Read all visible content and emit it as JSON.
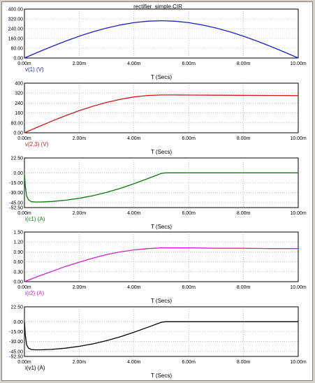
{
  "title": "rectifier_simple.CIR",
  "chart_data": [
    {
      "type": "line",
      "xlabel": "T (Secs)",
      "ylabel": "v(1) (V)",
      "color": "#1f1fcc",
      "xlim": [
        0,
        10
      ],
      "ylim": [
        0,
        400
      ],
      "xticks": [
        "0.00m",
        "2.00m",
        "4.00m",
        "6.00m",
        "8.00m",
        "10.00m"
      ],
      "yticks": [
        "400.00",
        "320.00",
        "240.00",
        "160.00",
        "80.00",
        "0.00"
      ],
      "yticks_values": [
        400,
        320,
        240,
        160,
        80,
        0
      ],
      "series": [
        {
          "name": "v(1) (V)",
          "x": [
            0,
            0.5,
            1,
            1.5,
            2,
            2.5,
            3,
            3.5,
            4,
            4.5,
            5,
            5.5,
            6,
            6.5,
            7,
            7.5,
            8,
            8.5,
            9,
            9.5,
            10
          ],
          "values": [
            0,
            48,
            94,
            138,
            178,
            214,
            245,
            270,
            289,
            301,
            305,
            301,
            289,
            270,
            245,
            214,
            178,
            138,
            94,
            48,
            0
          ]
        }
      ]
    },
    {
      "type": "line",
      "xlabel": "T (Secs)",
      "ylabel": "v(2,3) (V)",
      "color": "#d01818",
      "xlim": [
        0,
        10
      ],
      "ylim": [
        0,
        400
      ],
      "xticks": [
        "0.00m",
        "2.00m",
        "4.00m",
        "6.00m",
        "8.00m",
        "10.00m"
      ],
      "yticks": [
        "400",
        "320",
        "240",
        "160",
        "80.00",
        "0.00"
      ],
      "yticks_values": [
        400,
        320,
        240,
        160,
        80,
        0
      ],
      "series": [
        {
          "name": "v(2,3) (V)",
          "x": [
            0,
            0.5,
            1,
            1.5,
            2,
            2.5,
            3,
            3.5,
            4,
            4.5,
            5,
            5.5,
            6,
            7,
            8,
            9,
            10
          ],
          "values": [
            0,
            48,
            94,
            138,
            178,
            214,
            245,
            270,
            289,
            301,
            305,
            305,
            304,
            303,
            302,
            301,
            300
          ]
        }
      ]
    },
    {
      "type": "line",
      "xlabel": "T (Secs)",
      "ylabel": "i(c1) (A)",
      "color": "#0a7a0a",
      "xlim": [
        0,
        10
      ],
      "ylim": [
        -52.5,
        22.5
      ],
      "xticks": [
        "0.00m",
        "2.00m",
        "4.00m",
        "6.00m",
        "8.00m",
        "10.00m"
      ],
      "yticks": [
        "22.50",
        "0.00",
        "-15.00",
        "-30.00",
        "-45.00",
        "-52.50"
      ],
      "yticks_values": [
        22.5,
        0,
        -15,
        -30,
        -45,
        -52.5
      ],
      "series": [
        {
          "name": "i(c1) (A)",
          "x": [
            0,
            0.03,
            0.08,
            0.15,
            0.25,
            0.4,
            0.6,
            1,
            1.5,
            2,
            2.5,
            3,
            3.5,
            4,
            4.5,
            5,
            5.15,
            6,
            7,
            8,
            9,
            10
          ],
          "values": [
            0,
            -20,
            -35,
            -41,
            -43.5,
            -44,
            -44,
            -43.3,
            -41.4,
            -38.5,
            -34.5,
            -29.5,
            -23.5,
            -16.5,
            -8.8,
            -0.8,
            0,
            0,
            0,
            0,
            0,
            0
          ]
        }
      ]
    },
    {
      "type": "line",
      "xlabel": "T (Secs)",
      "ylabel": "i(r2) (A)",
      "color": "#cc22cc",
      "xlim": [
        0,
        10
      ],
      "ylim": [
        0,
        1.5
      ],
      "xticks": [
        "0.00m",
        "2.00m",
        "4.00m",
        "6.00m",
        "8.00m",
        "10.00m"
      ],
      "yticks": [
        "1.50",
        "1.20",
        "0.90",
        "0.60",
        "0.30",
        "0.00"
      ],
      "yticks_values": [
        1.5,
        1.2,
        0.9,
        0.6,
        0.3,
        0
      ],
      "series": [
        {
          "name": "i(r2) (A)",
          "x": [
            0,
            0.5,
            1,
            1.5,
            2,
            2.5,
            3,
            3.5,
            4,
            4.5,
            5,
            5.5,
            6,
            7,
            8,
            9,
            10
          ],
          "values": [
            0,
            0.16,
            0.31,
            0.46,
            0.59,
            0.71,
            0.82,
            0.9,
            0.96,
            1.0,
            1.02,
            1.02,
            1.02,
            1.01,
            1.01,
            1.0,
            1.0
          ]
        }
      ]
    },
    {
      "type": "line",
      "xlabel": "T (Secs)",
      "ylabel": "i(v1) (A)",
      "color": "#000000",
      "xlim": [
        0,
        10
      ],
      "ylim": [
        -52.5,
        22.5
      ],
      "xticks": [
        "0.00m",
        "2.00m",
        "4.00m",
        "6.00m",
        "8.00m",
        "10.00m"
      ],
      "yticks": [
        "22.50",
        "0.00",
        "-15.00",
        "-30.00",
        "-45.00",
        "-52.50"
      ],
      "yticks_values": [
        22.5,
        0,
        -15,
        -30,
        -45,
        -52.5
      ],
      "series": [
        {
          "name": "i(v1) (A)",
          "x": [
            0,
            0.03,
            0.08,
            0.15,
            0.25,
            0.4,
            0.6,
            1,
            1.5,
            2,
            2.5,
            3,
            3.5,
            4,
            4.5,
            5,
            5.15,
            6,
            7,
            8,
            9,
            10
          ],
          "values": [
            0,
            -20,
            -35,
            -40,
            -42,
            -42.5,
            -42.5,
            -41.8,
            -40,
            -37.2,
            -33.5,
            -28.6,
            -22.8,
            -16,
            -8.5,
            -0.8,
            0,
            0,
            0,
            0,
            0,
            0
          ]
        }
      ]
    }
  ]
}
